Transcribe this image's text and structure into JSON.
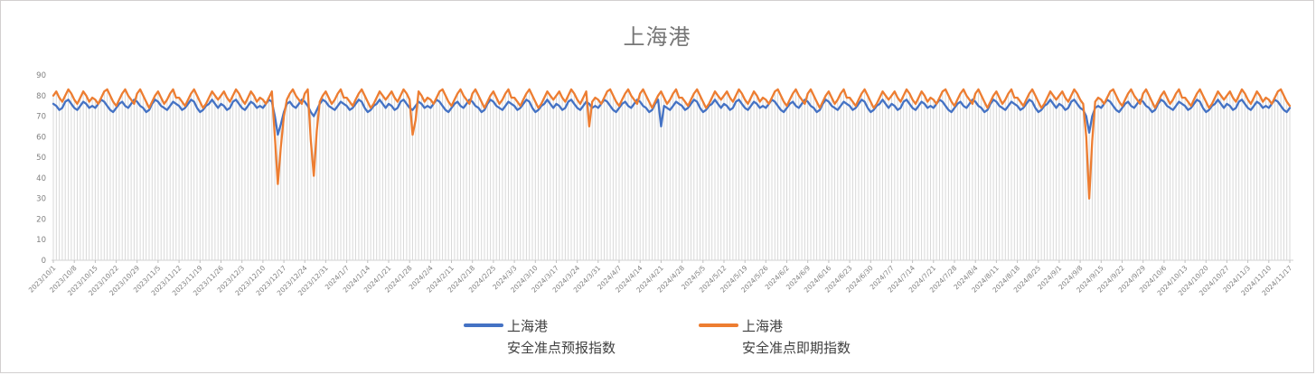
{
  "title": "上海港",
  "colors": {
    "series_forecast": "#4472C4",
    "series_spot": "#ED7D31",
    "drop_line": "#D9D9D9",
    "axis_line": "#D9D9D9",
    "tick_mark": "#BFBFBF",
    "tick_label": "#808080",
    "title_text": "#767676",
    "legend_text": "#404040",
    "frame_border": "#D2CFCF"
  },
  "legend": [
    {
      "line1": "上海港",
      "line2": "安全准点预报指数",
      "color": "#4472C4"
    },
    {
      "line1": "上海港",
      "line2": "安全准点即期指数",
      "color": "#ED7D31"
    }
  ],
  "chart_data": {
    "type": "line",
    "title": "上海港",
    "xlabel": "",
    "ylabel": "",
    "ylim": [
      0,
      90
    ],
    "y_ticks": [
      0,
      10,
      20,
      30,
      40,
      50,
      60,
      70,
      80,
      90
    ],
    "grid": "vertical drop lines per daily point, no horizontal gridlines",
    "legend_position": "bottom",
    "x_tick_interval_days": 7,
    "x_tick_labels": [
      "2023/10/1",
      "2023/10/8",
      "2023/10/15",
      "2023/10/22",
      "2023/10/29",
      "2023/11/5",
      "2023/11/12",
      "2023/11/19",
      "2023/11/26",
      "2023/12/3",
      "2023/12/10",
      "2023/12/17",
      "2023/12/24",
      "2023/12/31",
      "2024/1/7",
      "2024/1/14",
      "2024/1/21",
      "2024/1/28",
      "2024/2/4",
      "2024/2/11",
      "2024/2/18",
      "2024/2/25",
      "2024/3/3",
      "2024/3/10",
      "2024/3/17",
      "2024/3/24",
      "2024/3/31",
      "2024/4/7",
      "2024/4/14",
      "2024/4/21",
      "2024/4/28",
      "2024/5/5",
      "2024/5/12",
      "2024/5/19",
      "2024/5/26",
      "2024/6/2",
      "2024/6/9",
      "2024/6/16",
      "2024/6/23",
      "2024/6/30",
      "2024/7/7",
      "2024/7/14",
      "2024/7/21",
      "2024/7/28",
      "2024/8/4",
      "2024/8/11",
      "2024/8/18",
      "2024/8/25",
      "2024/9/1",
      "2024/9/8",
      "2024/9/15",
      "2024/9/22",
      "2024/9/29",
      "2024/10/6",
      "2024/10/13",
      "2024/10/20",
      "2024/10/27",
      "2024/11/3",
      "2024/11/10",
      "2024/11/17"
    ],
    "series": [
      {
        "name": "上海港 安全准点预报指数",
        "color": "#4472C4",
        "values": [
          76,
          75,
          73,
          74,
          77,
          78,
          76,
          74,
          73,
          75,
          77,
          76,
          74,
          75,
          74,
          76,
          78,
          77,
          75,
          73,
          72,
          74,
          76,
          77,
          75,
          74,
          76,
          78,
          77,
          75,
          74,
          72,
          73,
          76,
          78,
          77,
          75,
          74,
          73,
          75,
          77,
          76,
          75,
          73,
          74,
          76,
          78,
          77,
          74,
          72,
          73,
          75,
          76,
          78,
          76,
          74,
          76,
          75,
          73,
          74,
          77,
          78,
          76,
          74,
          73,
          75,
          77,
          76,
          74,
          75,
          74,
          76,
          78,
          77,
          70,
          61,
          66,
          72,
          76,
          77,
          75,
          74,
          76,
          78,
          77,
          75,
          72,
          70,
          73,
          76,
          78,
          77,
          75,
          74,
          73,
          75,
          77,
          76,
          75,
          73,
          74,
          76,
          78,
          77,
          74,
          72,
          73,
          75,
          76,
          78,
          76,
          74,
          76,
          75,
          73,
          74,
          77,
          78,
          76,
          74,
          73,
          75,
          77,
          76,
          74,
          75,
          74,
          76,
          78,
          77,
          75,
          73,
          72,
          74,
          76,
          77,
          75,
          74,
          76,
          78,
          77,
          75,
          74,
          72,
          73,
          76,
          78,
          77,
          75,
          74,
          73,
          75,
          77,
          76,
          75,
          73,
          74,
          76,
          78,
          77,
          74,
          72,
          73,
          75,
          76,
          78,
          76,
          74,
          76,
          75,
          73,
          74,
          77,
          78,
          76,
          74,
          73,
          75,
          77,
          76,
          74,
          75,
          74,
          76,
          78,
          77,
          75,
          73,
          72,
          74,
          76,
          77,
          75,
          74,
          76,
          78,
          77,
          75,
          74,
          72,
          73,
          76,
          78,
          65,
          75,
          74,
          73,
          75,
          77,
          76,
          75,
          73,
          74,
          76,
          78,
          77,
          74,
          72,
          73,
          75,
          76,
          78,
          76,
          74,
          76,
          75,
          73,
          74,
          77,
          78,
          76,
          74,
          73,
          75,
          77,
          76,
          74,
          75,
          74,
          76,
          78,
          77,
          75,
          73,
          72,
          74,
          76,
          77,
          75,
          74,
          76,
          78,
          77,
          75,
          74,
          72,
          73,
          76,
          78,
          77,
          75,
          74,
          73,
          75,
          77,
          76,
          75,
          73,
          74,
          76,
          78,
          77,
          74,
          72,
          73,
          75,
          76,
          78,
          76,
          74,
          76,
          75,
          73,
          74,
          77,
          78,
          76,
          74,
          73,
          75,
          77,
          76,
          74,
          75,
          74,
          76,
          78,
          77,
          75,
          73,
          72,
          74,
          76,
          77,
          75,
          74,
          76,
          78,
          77,
          75,
          74,
          72,
          73,
          76,
          78,
          77,
          75,
          74,
          73,
          75,
          77,
          76,
          75,
          73,
          74,
          76,
          78,
          77,
          74,
          72,
          73,
          75,
          76,
          78,
          76,
          74,
          76,
          75,
          73,
          74,
          77,
          78,
          76,
          74,
          73,
          70,
          62,
          70,
          74,
          75,
          74,
          76,
          78,
          77,
          75,
          73,
          72,
          74,
          76,
          77,
          75,
          74,
          76,
          78,
          77,
          75,
          74,
          72,
          73,
          76,
          78,
          77,
          75,
          74,
          73,
          75,
          77,
          76,
          75,
          73,
          74,
          76,
          78,
          77,
          74,
          72,
          73,
          75,
          76,
          78,
          76,
          74,
          76,
          75,
          73,
          74,
          77,
          78,
          76,
          74,
          73,
          75,
          77,
          76,
          74,
          75,
          74,
          76,
          78,
          77,
          75,
          73,
          72,
          74
        ]
      },
      {
        "name": "上海港 安全准点即期指数",
        "color": "#ED7D31",
        "values": [
          80,
          82,
          79,
          77,
          80,
          83,
          81,
          78,
          76,
          79,
          82,
          80,
          77,
          79,
          78,
          76,
          79,
          82,
          83,
          80,
          77,
          75,
          78,
          81,
          83,
          80,
          78,
          76,
          81,
          83,
          80,
          77,
          74,
          77,
          80,
          82,
          79,
          76,
          78,
          81,
          83,
          79,
          79,
          77,
          75,
          78,
          81,
          83,
          80,
          77,
          74,
          76,
          79,
          82,
          80,
          78,
          80,
          82,
          79,
          77,
          80,
          83,
          81,
          78,
          76,
          79,
          82,
          80,
          77,
          79,
          78,
          76,
          79,
          82,
          60,
          37,
          55,
          70,
          78,
          81,
          83,
          80,
          78,
          76,
          81,
          83,
          58,
          41,
          63,
          77,
          80,
          82,
          79,
          76,
          78,
          81,
          83,
          79,
          79,
          77,
          75,
          78,
          81,
          83,
          80,
          77,
          74,
          76,
          79,
          82,
          80,
          78,
          80,
          82,
          79,
          77,
          80,
          83,
          81,
          78,
          61,
          68,
          82,
          80,
          77,
          79,
          78,
          76,
          79,
          82,
          83,
          80,
          77,
          75,
          78,
          81,
          83,
          80,
          78,
          76,
          81,
          83,
          80,
          77,
          74,
          77,
          80,
          82,
          79,
          76,
          78,
          81,
          83,
          79,
          79,
          77,
          75,
          78,
          81,
          83,
          80,
          77,
          74,
          76,
          79,
          82,
          80,
          78,
          80,
          82,
          79,
          77,
          80,
          83,
          81,
          78,
          76,
          79,
          82,
          65,
          77,
          79,
          78,
          76,
          79,
          82,
          83,
          80,
          77,
          75,
          78,
          81,
          83,
          80,
          78,
          76,
          81,
          83,
          80,
          77,
          74,
          77,
          80,
          82,
          79,
          76,
          78,
          81,
          83,
          79,
          79,
          77,
          75,
          78,
          81,
          83,
          80,
          77,
          74,
          76,
          79,
          82,
          80,
          78,
          80,
          82,
          79,
          77,
          80,
          83,
          81,
          78,
          76,
          79,
          82,
          80,
          77,
          79,
          78,
          76,
          79,
          82,
          83,
          80,
          77,
          75,
          78,
          81,
          83,
          80,
          78,
          76,
          81,
          83,
          80,
          77,
          74,
          77,
          80,
          82,
          79,
          76,
          78,
          81,
          83,
          79,
          79,
          77,
          75,
          78,
          81,
          83,
          80,
          77,
          74,
          76,
          79,
          82,
          80,
          78,
          80,
          82,
          79,
          77,
          80,
          83,
          81,
          78,
          76,
          79,
          82,
          80,
          77,
          79,
          78,
          76,
          79,
          82,
          83,
          80,
          77,
          75,
          78,
          81,
          83,
          80,
          78,
          76,
          81,
          83,
          80,
          77,
          74,
          77,
          80,
          82,
          79,
          76,
          78,
          81,
          83,
          79,
          79,
          77,
          75,
          78,
          81,
          83,
          80,
          77,
          74,
          76,
          79,
          82,
          80,
          78,
          80,
          82,
          79,
          77,
          80,
          83,
          81,
          78,
          76,
          60,
          30,
          58,
          77,
          79,
          78,
          76,
          79,
          82,
          83,
          80,
          77,
          75,
          78,
          81,
          83,
          80,
          78,
          76,
          81,
          83,
          80,
          77,
          74,
          77,
          80,
          82,
          79,
          76,
          78,
          81,
          83,
          79,
          79,
          77,
          75,
          78,
          81,
          83,
          80,
          77,
          74,
          76,
          79,
          82,
          80,
          78,
          80,
          82,
          79,
          77,
          80,
          83,
          81,
          78,
          76,
          79,
          82,
          80,
          77,
          79,
          78,
          76,
          79,
          82,
          83,
          80,
          77,
          75
        ]
      }
    ]
  }
}
